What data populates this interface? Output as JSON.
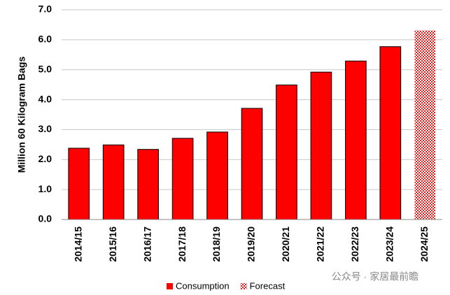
{
  "chart_data": {
    "type": "bar",
    "y_label": "Million 60 Kilogram Bags",
    "categories": [
      "2014/15",
      "2015/16",
      "2016/17",
      "2017/18",
      "2018/19",
      "2019/20",
      "2020/21",
      "2021/22",
      "2022/23",
      "2023/24",
      "2024/25"
    ],
    "series": [
      {
        "name": "Consumption",
        "color": "#ff0000",
        "values": [
          2.38,
          2.49,
          2.34,
          2.71,
          2.92,
          3.71,
          4.49,
          4.92,
          5.29,
          5.77,
          null
        ]
      },
      {
        "name": "Forecast",
        "color": "#e0a0a0",
        "values": [
          null,
          null,
          null,
          null,
          null,
          null,
          null,
          null,
          null,
          null,
          6.31
        ]
      }
    ],
    "ylim": [
      0,
      7
    ],
    "yticks": [
      {
        "value": 0,
        "label": "0.0"
      },
      {
        "value": 1,
        "label": "1.0"
      },
      {
        "value": 2,
        "label": "2.0"
      },
      {
        "value": 3,
        "label": "3.0"
      },
      {
        "value": 4,
        "label": "4.0"
      },
      {
        "value": 5,
        "label": "5.0"
      },
      {
        "value": 6,
        "label": "6.0"
      },
      {
        "value": 7,
        "label": "7.0"
      }
    ],
    "grid": true,
    "legend": "bottom",
    "watermark": "公众号 · 家居最前瞻"
  }
}
